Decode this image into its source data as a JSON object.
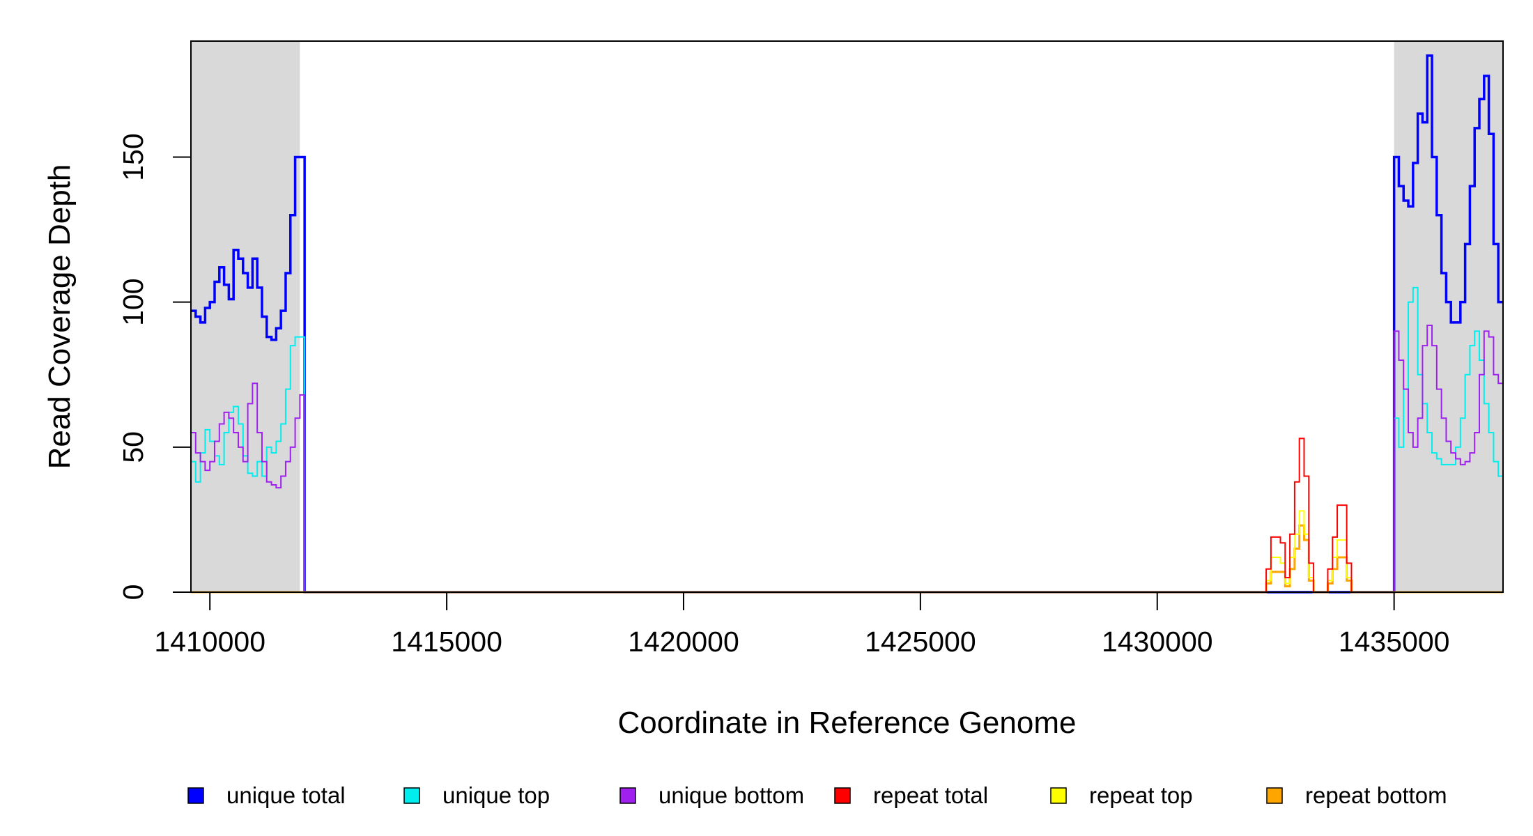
{
  "chart_data": {
    "type": "line",
    "step": true,
    "title": "",
    "xlabel": "Coordinate in Reference Genome",
    "ylabel": "Read Coverage Depth",
    "xlim": [
      1409600,
      1437300
    ],
    "ylim": [
      0,
      190
    ],
    "xticks": [
      1410000,
      1415000,
      1420000,
      1425000,
      1430000,
      1435000
    ],
    "yticks": [
      0,
      50,
      100,
      150
    ],
    "shaded_regions": [
      [
        1409600,
        1411900
      ],
      [
        1435000,
        1437300
      ]
    ],
    "shade_color": "#d9d9d9",
    "legend_position": "bottom",
    "series": [
      {
        "name": "unique total",
        "color": "#0000ff",
        "x": [
          1409600,
          1409700,
          1409800,
          1409900,
          1410000,
          1410100,
          1410200,
          1410300,
          1410400,
          1410500,
          1410600,
          1410700,
          1410800,
          1410900,
          1411000,
          1411100,
          1411200,
          1411300,
          1411400,
          1411500,
          1411600,
          1411700,
          1411800,
          1411900,
          1412000,
          1432000,
          1434900,
          1435000,
          1435100,
          1435200,
          1435300,
          1435400,
          1435500,
          1435600,
          1435700,
          1435800,
          1435900,
          1436000,
          1436100,
          1436200,
          1436300,
          1436400,
          1436500,
          1436600,
          1436700,
          1436800,
          1436900,
          1437000,
          1437100,
          1437200,
          1437300
        ],
        "y": [
          97,
          95,
          93,
          98,
          100,
          107,
          112,
          106,
          101,
          118,
          115,
          110,
          105,
          115,
          105,
          95,
          88,
          87,
          91,
          97,
          110,
          130,
          150,
          150,
          0,
          0,
          0,
          150,
          140,
          135,
          133,
          148,
          165,
          162,
          185,
          150,
          130,
          110,
          100,
          93,
          93,
          100,
          120,
          140,
          160,
          170,
          178,
          158,
          120,
          100,
          100
        ]
      },
      {
        "name": "unique top",
        "color": "#00eeee",
        "x": [
          1409600,
          1409700,
          1409800,
          1409900,
          1410000,
          1410100,
          1410200,
          1410300,
          1410400,
          1410500,
          1410600,
          1410700,
          1410800,
          1410900,
          1411000,
          1411100,
          1411200,
          1411300,
          1411400,
          1411500,
          1411600,
          1411700,
          1411800,
          1411900,
          1412000,
          1432000,
          1434900,
          1435000,
          1435100,
          1435200,
          1435300,
          1435400,
          1435500,
          1435600,
          1435700,
          1435800,
          1435900,
          1436000,
          1436100,
          1436200,
          1436300,
          1436400,
          1436500,
          1436600,
          1436700,
          1436800,
          1436900,
          1437000,
          1437100,
          1437200,
          1437300
        ],
        "y": [
          45,
          38,
          48,
          56,
          52,
          47,
          44,
          55,
          62,
          64,
          58,
          47,
          41,
          40,
          45,
          40,
          50,
          48,
          52,
          58,
          70,
          85,
          88,
          88,
          0,
          0,
          0,
          60,
          50,
          70,
          100,
          105,
          75,
          65,
          55,
          48,
          46,
          44,
          44,
          44,
          50,
          60,
          75,
          85,
          90,
          80,
          65,
          55,
          45,
          40,
          40
        ]
      },
      {
        "name": "unique bottom",
        "color": "#a020f0",
        "x": [
          1409600,
          1409700,
          1409800,
          1409900,
          1410000,
          1410100,
          1410200,
          1410300,
          1410400,
          1410500,
          1410600,
          1410700,
          1410800,
          1410900,
          1411000,
          1411100,
          1411200,
          1411300,
          1411400,
          1411500,
          1411600,
          1411700,
          1411800,
          1411900,
          1412000,
          1432000,
          1434900,
          1435000,
          1435100,
          1435200,
          1435300,
          1435400,
          1435500,
          1435600,
          1435700,
          1435800,
          1435900,
          1436000,
          1436100,
          1436200,
          1436300,
          1436400,
          1436500,
          1436600,
          1436700,
          1436800,
          1436900,
          1437000,
          1437100,
          1437200,
          1437300
        ],
        "y": [
          55,
          48,
          45,
          42,
          45,
          52,
          58,
          62,
          60,
          55,
          50,
          45,
          65,
          72,
          55,
          45,
          38,
          37,
          36,
          40,
          45,
          50,
          60,
          68,
          0,
          0,
          0,
          90,
          80,
          70,
          55,
          50,
          60,
          85,
          92,
          85,
          70,
          60,
          52,
          48,
          46,
          44,
          45,
          48,
          55,
          75,
          90,
          88,
          75,
          72,
          72
        ]
      },
      {
        "name": "repeat total",
        "color": "#ff0000",
        "x": [
          1409600,
          1432200,
          1432300,
          1432400,
          1432500,
          1432600,
          1432700,
          1432800,
          1432900,
          1433000,
          1433100,
          1433200,
          1433300,
          1433400,
          1433500,
          1433600,
          1433700,
          1433800,
          1433900,
          1434000,
          1434100,
          1437300
        ],
        "y": [
          0,
          0,
          8,
          19,
          19,
          17,
          5,
          20,
          38,
          53,
          40,
          10,
          0,
          0,
          0,
          8,
          19,
          30,
          30,
          10,
          0,
          0
        ]
      },
      {
        "name": "repeat top",
        "color": "#ffff00",
        "x": [
          1409600,
          1432200,
          1432300,
          1432400,
          1432500,
          1432600,
          1432700,
          1432800,
          1432900,
          1433000,
          1433100,
          1433200,
          1433300,
          1433400,
          1433500,
          1433600,
          1433700,
          1433800,
          1433900,
          1434000,
          1434100,
          1437300
        ],
        "y": [
          0,
          0,
          4,
          12,
          12,
          10,
          3,
          12,
          20,
          28,
          20,
          5,
          0,
          0,
          0,
          4,
          12,
          18,
          18,
          5,
          0,
          0
        ]
      },
      {
        "name": "repeat bottom",
        "color": "#ffa500",
        "x": [
          1409600,
          1432200,
          1432300,
          1432400,
          1432500,
          1432600,
          1432700,
          1432800,
          1432900,
          1433000,
          1433100,
          1433200,
          1433300,
          1433400,
          1433500,
          1433600,
          1433700,
          1433800,
          1433900,
          1434000,
          1434100,
          1437300
        ],
        "y": [
          0,
          0,
          3,
          7,
          7,
          7,
          2,
          8,
          15,
          23,
          18,
          4,
          0,
          0,
          0,
          3,
          8,
          12,
          12,
          4,
          0,
          0
        ]
      }
    ]
  }
}
